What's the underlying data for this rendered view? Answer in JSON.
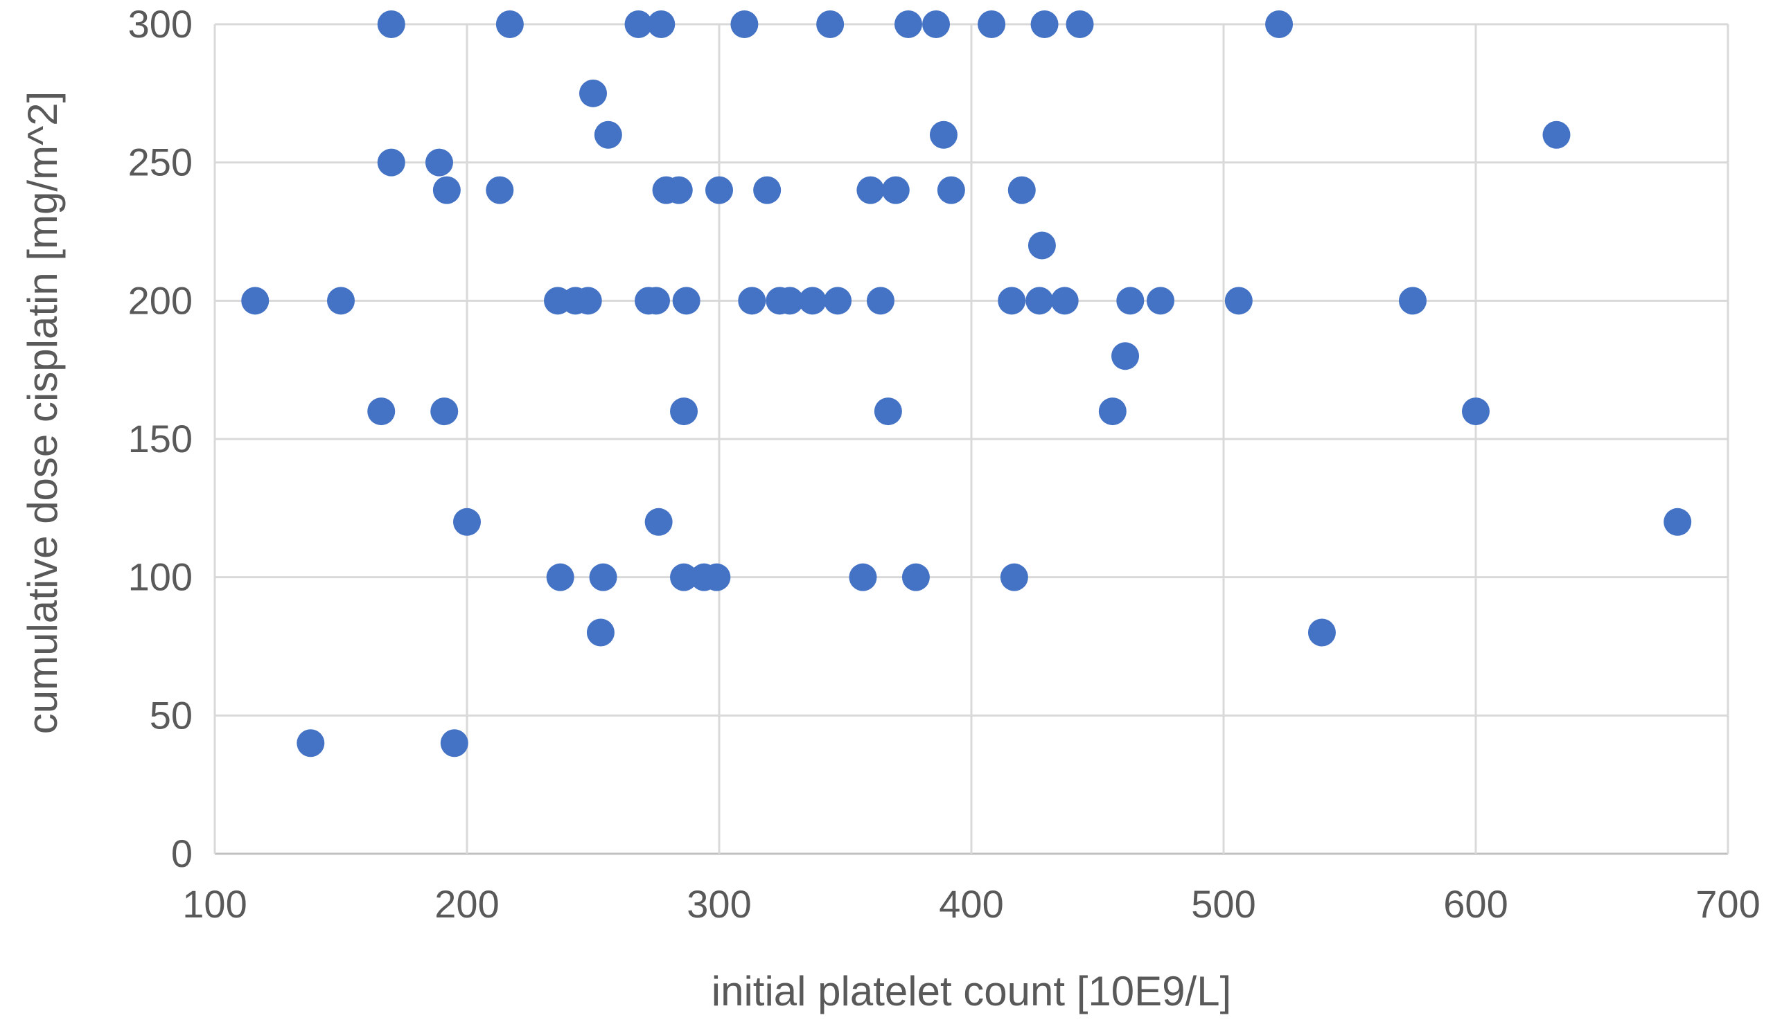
{
  "chart_data": {
    "type": "scatter",
    "title": "",
    "xlabel": "initial platelet count [10E9/L]",
    "ylabel": "cumulative dose cisplatin [mg/m^2]",
    "xlim": [
      100,
      700
    ],
    "ylim": [
      0,
      300
    ],
    "xticks": [
      "100",
      "200",
      "300",
      "400",
      "500",
      "600",
      "700"
    ],
    "yticks": [
      "0",
      "50",
      "100",
      "150",
      "200",
      "250",
      "300"
    ],
    "grid": true,
    "legend": "none",
    "marker_color": "#4472c4",
    "grid_color": "#d9d9d9",
    "text_color": "#595959",
    "series": [
      {
        "points": [
          [
            170,
            300
          ],
          [
            217,
            300
          ],
          [
            268,
            300
          ],
          [
            277,
            300
          ],
          [
            310,
            300
          ],
          [
            344,
            300
          ],
          [
            375,
            300
          ],
          [
            386,
            300
          ],
          [
            408,
            300
          ],
          [
            429,
            300
          ],
          [
            443,
            300
          ],
          [
            522,
            300
          ],
          [
            250,
            275
          ],
          [
            256,
            260
          ],
          [
            389,
            260
          ],
          [
            632,
            260
          ],
          [
            170,
            250
          ],
          [
            189,
            250
          ],
          [
            192,
            240
          ],
          [
            213,
            240
          ],
          [
            279,
            240
          ],
          [
            284,
            240
          ],
          [
            300,
            240
          ],
          [
            319,
            240
          ],
          [
            360,
            240
          ],
          [
            370,
            240
          ],
          [
            392,
            240
          ],
          [
            420,
            240
          ],
          [
            428,
            220
          ],
          [
            116,
            200
          ],
          [
            150,
            200
          ],
          [
            236,
            200
          ],
          [
            243,
            200
          ],
          [
            248,
            200
          ],
          [
            272,
            200
          ],
          [
            275,
            200
          ],
          [
            287,
            200
          ],
          [
            313,
            200
          ],
          [
            324,
            200
          ],
          [
            328,
            200
          ],
          [
            337,
            200
          ],
          [
            347,
            200
          ],
          [
            364,
            200
          ],
          [
            416,
            200
          ],
          [
            427,
            200
          ],
          [
            437,
            200
          ],
          [
            463,
            200
          ],
          [
            475,
            200
          ],
          [
            506,
            200
          ],
          [
            575,
            200
          ],
          [
            461,
            180
          ],
          [
            166,
            160
          ],
          [
            191,
            160
          ],
          [
            286,
            160
          ],
          [
            367,
            160
          ],
          [
            456,
            160
          ],
          [
            600,
            160
          ],
          [
            200,
            120
          ],
          [
            276,
            120
          ],
          [
            680,
            120
          ],
          [
            237,
            100
          ],
          [
            254,
            100
          ],
          [
            286,
            100
          ],
          [
            294,
            100
          ],
          [
            299,
            100
          ],
          [
            357,
            100
          ],
          [
            378,
            100
          ],
          [
            417,
            100
          ],
          [
            253,
            80
          ],
          [
            539,
            80
          ],
          [
            138,
            40
          ],
          [
            195,
            40
          ]
        ]
      }
    ]
  }
}
